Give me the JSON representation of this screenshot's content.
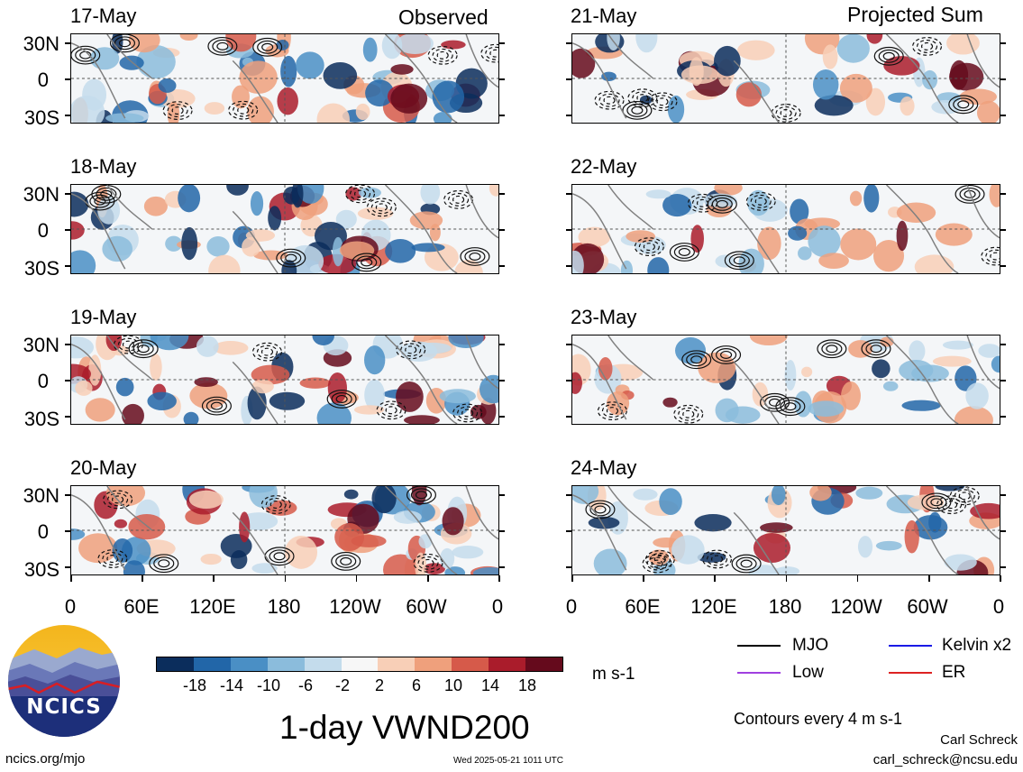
{
  "columns": {
    "left_title": "Observed",
    "right_title": "Projected Sum"
  },
  "dates": {
    "left": [
      "17-May",
      "18-May",
      "19-May",
      "20-May"
    ],
    "right": [
      "21-May",
      "22-May",
      "23-May",
      "24-May"
    ]
  },
  "lat_labels": [
    "30N",
    "0",
    "30S"
  ],
  "lon_labels": [
    "0",
    "60E",
    "120E",
    "180",
    "120W",
    "60W",
    "0"
  ],
  "colorbar": {
    "labels": [
      "-18",
      "-14",
      "-10",
      "-6",
      "-2",
      "2",
      "6",
      "10",
      "14",
      "18"
    ],
    "colors": [
      "#0b2d5c",
      "#2266a8",
      "#4a8fc5",
      "#8bbcdc",
      "#c4dcec",
      "#f7f7f7",
      "#f8cfb7",
      "#efa07c",
      "#d65a4a",
      "#aa1c2b",
      "#650a1c"
    ],
    "units": "m s-1"
  },
  "title": "1-day VWND200",
  "legend": {
    "items": [
      {
        "label": "MJO",
        "color": "#000000"
      },
      {
        "label": "Kelvin x2",
        "color": "#1a1ae6"
      },
      {
        "label": "Low",
        "color": "#a040e0"
      },
      {
        "label": "ER",
        "color": "#dd2222"
      }
    ],
    "contours_note": "Contours every 4 m s-1"
  },
  "logo": {
    "text": "NCICS"
  },
  "footer": {
    "url": "ncics.org/mjo",
    "timestamp": "Wed 2025-05-21 1011 UTC",
    "author": "Carl Schreck",
    "email": "carl_schreck@ncsu.edu"
  }
}
